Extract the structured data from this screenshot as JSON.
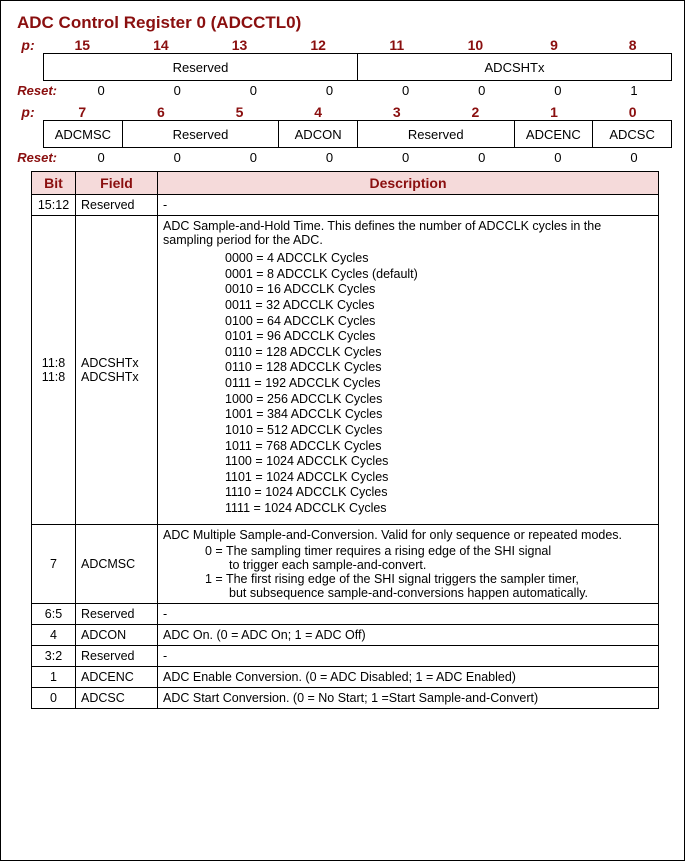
{
  "title": "ADC Control Register 0 (ADCCTL0)",
  "labels": {
    "p": "p:",
    "reset": "Reset:"
  },
  "upper": {
    "bits": [
      "15",
      "14",
      "13",
      "12",
      "11",
      "10",
      "9",
      "8"
    ],
    "boxes": [
      {
        "span": 4,
        "text": "Reserved"
      },
      {
        "span": 4,
        "text": "ADCSHTx"
      }
    ],
    "reset": [
      "0",
      "0",
      "0",
      "0",
      "0",
      "0",
      "0",
      "1"
    ]
  },
  "lower": {
    "bits": [
      "7",
      "6",
      "5",
      "4",
      "3",
      "2",
      "1",
      "0"
    ],
    "boxes": [
      {
        "span": 1,
        "text": "ADCMSC"
      },
      {
        "span": 2,
        "text": "Reserved"
      },
      {
        "span": 1,
        "text": "ADCON"
      },
      {
        "span": 2,
        "text": "Reserved"
      },
      {
        "span": 1,
        "text": "ADCENC"
      },
      {
        "span": 1,
        "text": "ADCSC"
      }
    ],
    "reset": [
      "0",
      "0",
      "0",
      "0",
      "0",
      "0",
      "0",
      "0"
    ]
  },
  "dtable": {
    "headers": [
      "Bit",
      "Field",
      "Description"
    ],
    "rows": [
      {
        "bit": "15:12",
        "field": "Reserved",
        "desc_plain": "-"
      },
      {
        "bit": "11:8\n11:8",
        "field": "ADCSHTx\nADCSHTx",
        "intro": "ADC Sample-and-Hold Time.  This defines the number of ADCCLK cycles in the sampling period for the ADC.",
        "lines": [
          "0000 = 4 ADCCLK Cycles",
          "0001 = 8 ADCCLK Cycles (default)",
          "0010 = 16 ADCCLK Cycles",
          "0011 = 32 ADCCLK Cycles",
          "0100 = 64 ADCCLK Cycles",
          "0101 = 96 ADCCLK Cycles",
          "0110 = 128 ADCCLK Cycles",
          "0110 = 128 ADCCLK Cycles",
          "0111 = 192 ADCCLK Cycles",
          "1000 = 256 ADCCLK Cycles",
          "1001 = 384 ADCCLK Cycles",
          "1010 = 512 ADCCLK Cycles",
          "1011 = 768 ADCCLK Cycles",
          "1100 = 1024 ADCCLK Cycles",
          "1101 = 1024 ADCCLK Cycles",
          "1110 = 1024 ADCCLK Cycles",
          "1111 = 1024 ADCCLK Cycles"
        ]
      },
      {
        "bit": "7",
        "field": "ADCMSC",
        "intro": "ADC Multiple Sample-and-Conversion.  Valid for only sequence or repeated modes.",
        "pairs": [
          [
            "0 = The sampling timer requires a rising edge of the SHI signal",
            "to trigger each sample-and-convert."
          ],
          [
            "1 = The first rising edge of the SHI signal triggers the sampler timer,",
            "but subsequence sample-and-conversions happen automatically."
          ]
        ]
      },
      {
        "bit": "6:5",
        "field": "Reserved",
        "desc_plain": "-"
      },
      {
        "bit": "4",
        "field": "ADCON",
        "desc_plain": "ADC On. (0 = ADC On; 1 = ADC Off)"
      },
      {
        "bit": "3:2",
        "field": "Reserved",
        "desc_plain": "-"
      },
      {
        "bit": "1",
        "field": "ADCENC",
        "desc_plain": "ADC Enable Conversion. (0 = ADC Disabled; 1 = ADC Enabled)"
      },
      {
        "bit": "0",
        "field": "ADCSC",
        "desc_plain": "ADC Start Conversion. (0 = No Start; 1 =Start Sample-and-Convert)"
      }
    ]
  }
}
